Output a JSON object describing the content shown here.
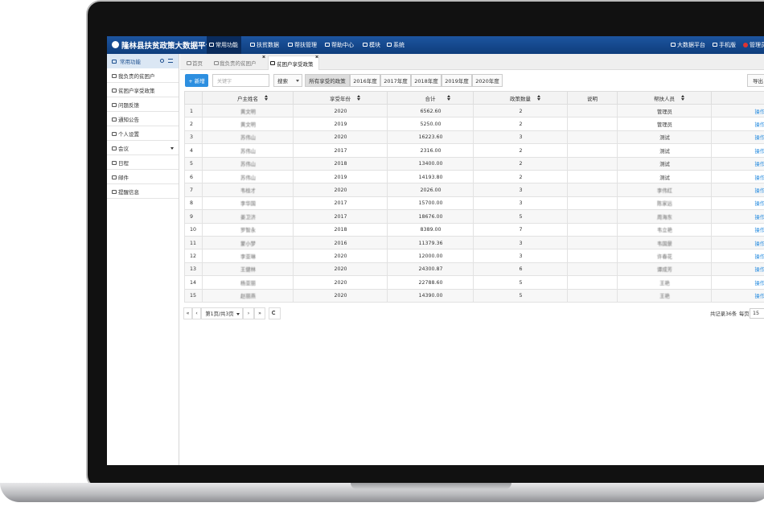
{
  "header": {
    "title": "隆林县扶贫政策大数据平台",
    "nav": [
      "常用功能",
      "扶贫数据",
      "帮扶管理",
      "帮助中心",
      "模块",
      "系统"
    ],
    "right": [
      "大数据平台",
      "手机版",
      "管理员"
    ]
  },
  "sidebar": {
    "title": "常用功能",
    "items": [
      "我负责的贫困户",
      "贫困户享受政策",
      "问题反馈",
      "通知公告",
      "个人设置",
      "会议",
      "日程",
      "邮件",
      "提醒信息"
    ]
  },
  "tabs": [
    "首页",
    "我负责的贫困户",
    "贫困户享受政策"
  ],
  "toolbar": {
    "add": "+ 新增",
    "search_placeholder": "关键字",
    "search": "搜索",
    "filters": [
      "所有享受的政策",
      "2016年度",
      "2017年度",
      "2018年度",
      "2019年度",
      "2020年度"
    ],
    "export": "导出"
  },
  "table": {
    "columns": [
      "户主姓名",
      "享受年份",
      "合计",
      "政策数量",
      "说明",
      "帮扶人员"
    ],
    "rows": [
      {
        "no": 1,
        "name": "黄文明",
        "year": 2020,
        "total": "6562.60",
        "count": 2,
        "helper": "管理员",
        "action": "操作"
      },
      {
        "no": 2,
        "name": "黄文明",
        "year": 2019,
        "total": "5250.00",
        "count": 2,
        "helper": "管理员",
        "action": "操作"
      },
      {
        "no": 3,
        "name": "苏伟山",
        "year": 2020,
        "total": "16223.60",
        "count": 3,
        "helper": "测试",
        "action": "操作"
      },
      {
        "no": 4,
        "name": "苏伟山",
        "year": 2017,
        "total": "2316.00",
        "count": 2,
        "helper": "测试",
        "action": "操作"
      },
      {
        "no": 5,
        "name": "苏伟山",
        "year": 2018,
        "total": "13400.00",
        "count": 2,
        "helper": "测试",
        "action": "操作"
      },
      {
        "no": 6,
        "name": "苏伟山",
        "year": 2019,
        "total": "14193.80",
        "count": 2,
        "helper": "测试",
        "action": "操作"
      },
      {
        "no": 7,
        "name": "韦桂才",
        "year": 2020,
        "total": "2026.00",
        "count": 3,
        "helper": "李伟红",
        "action": "操作"
      },
      {
        "no": 8,
        "name": "李华国",
        "year": 2017,
        "total": "15700.00",
        "count": 3,
        "helper": "陈家远",
        "action": "操作"
      },
      {
        "no": 9,
        "name": "姜卫济",
        "year": 2017,
        "total": "18676.00",
        "count": 5,
        "helper": "周海东",
        "action": "操作"
      },
      {
        "no": 10,
        "name": "罗智永",
        "year": 2018,
        "total": "8389.00",
        "count": 7,
        "helper": "韦立艳",
        "action": "操作"
      },
      {
        "no": 11,
        "name": "蒙小梦",
        "year": 2016,
        "total": "11379.36",
        "count": 3,
        "helper": "韦国景",
        "action": "操作"
      },
      {
        "no": 12,
        "name": "李亚琳",
        "year": 2020,
        "total": "12000.00",
        "count": 3,
        "helper": "许春花",
        "action": "操作"
      },
      {
        "no": 13,
        "name": "王健林",
        "year": 2020,
        "total": "24300.87",
        "count": 6,
        "helper": "谭成芳",
        "action": "操作"
      },
      {
        "no": 14,
        "name": "杨亚丽",
        "year": 2020,
        "total": "22788.60",
        "count": 5,
        "helper": "王艳",
        "action": "操作"
      },
      {
        "no": 15,
        "name": "赵丽燕",
        "year": 2020,
        "total": "14390.00",
        "count": 5,
        "helper": "王艳",
        "action": "操作"
      }
    ]
  },
  "pagination": {
    "first": "«",
    "prev": "‹",
    "page": "第1页/共3页",
    "next": "›",
    "last": "»",
    "total": "共记录36条",
    "per_page_label": "每页",
    "per_page": 15
  }
}
